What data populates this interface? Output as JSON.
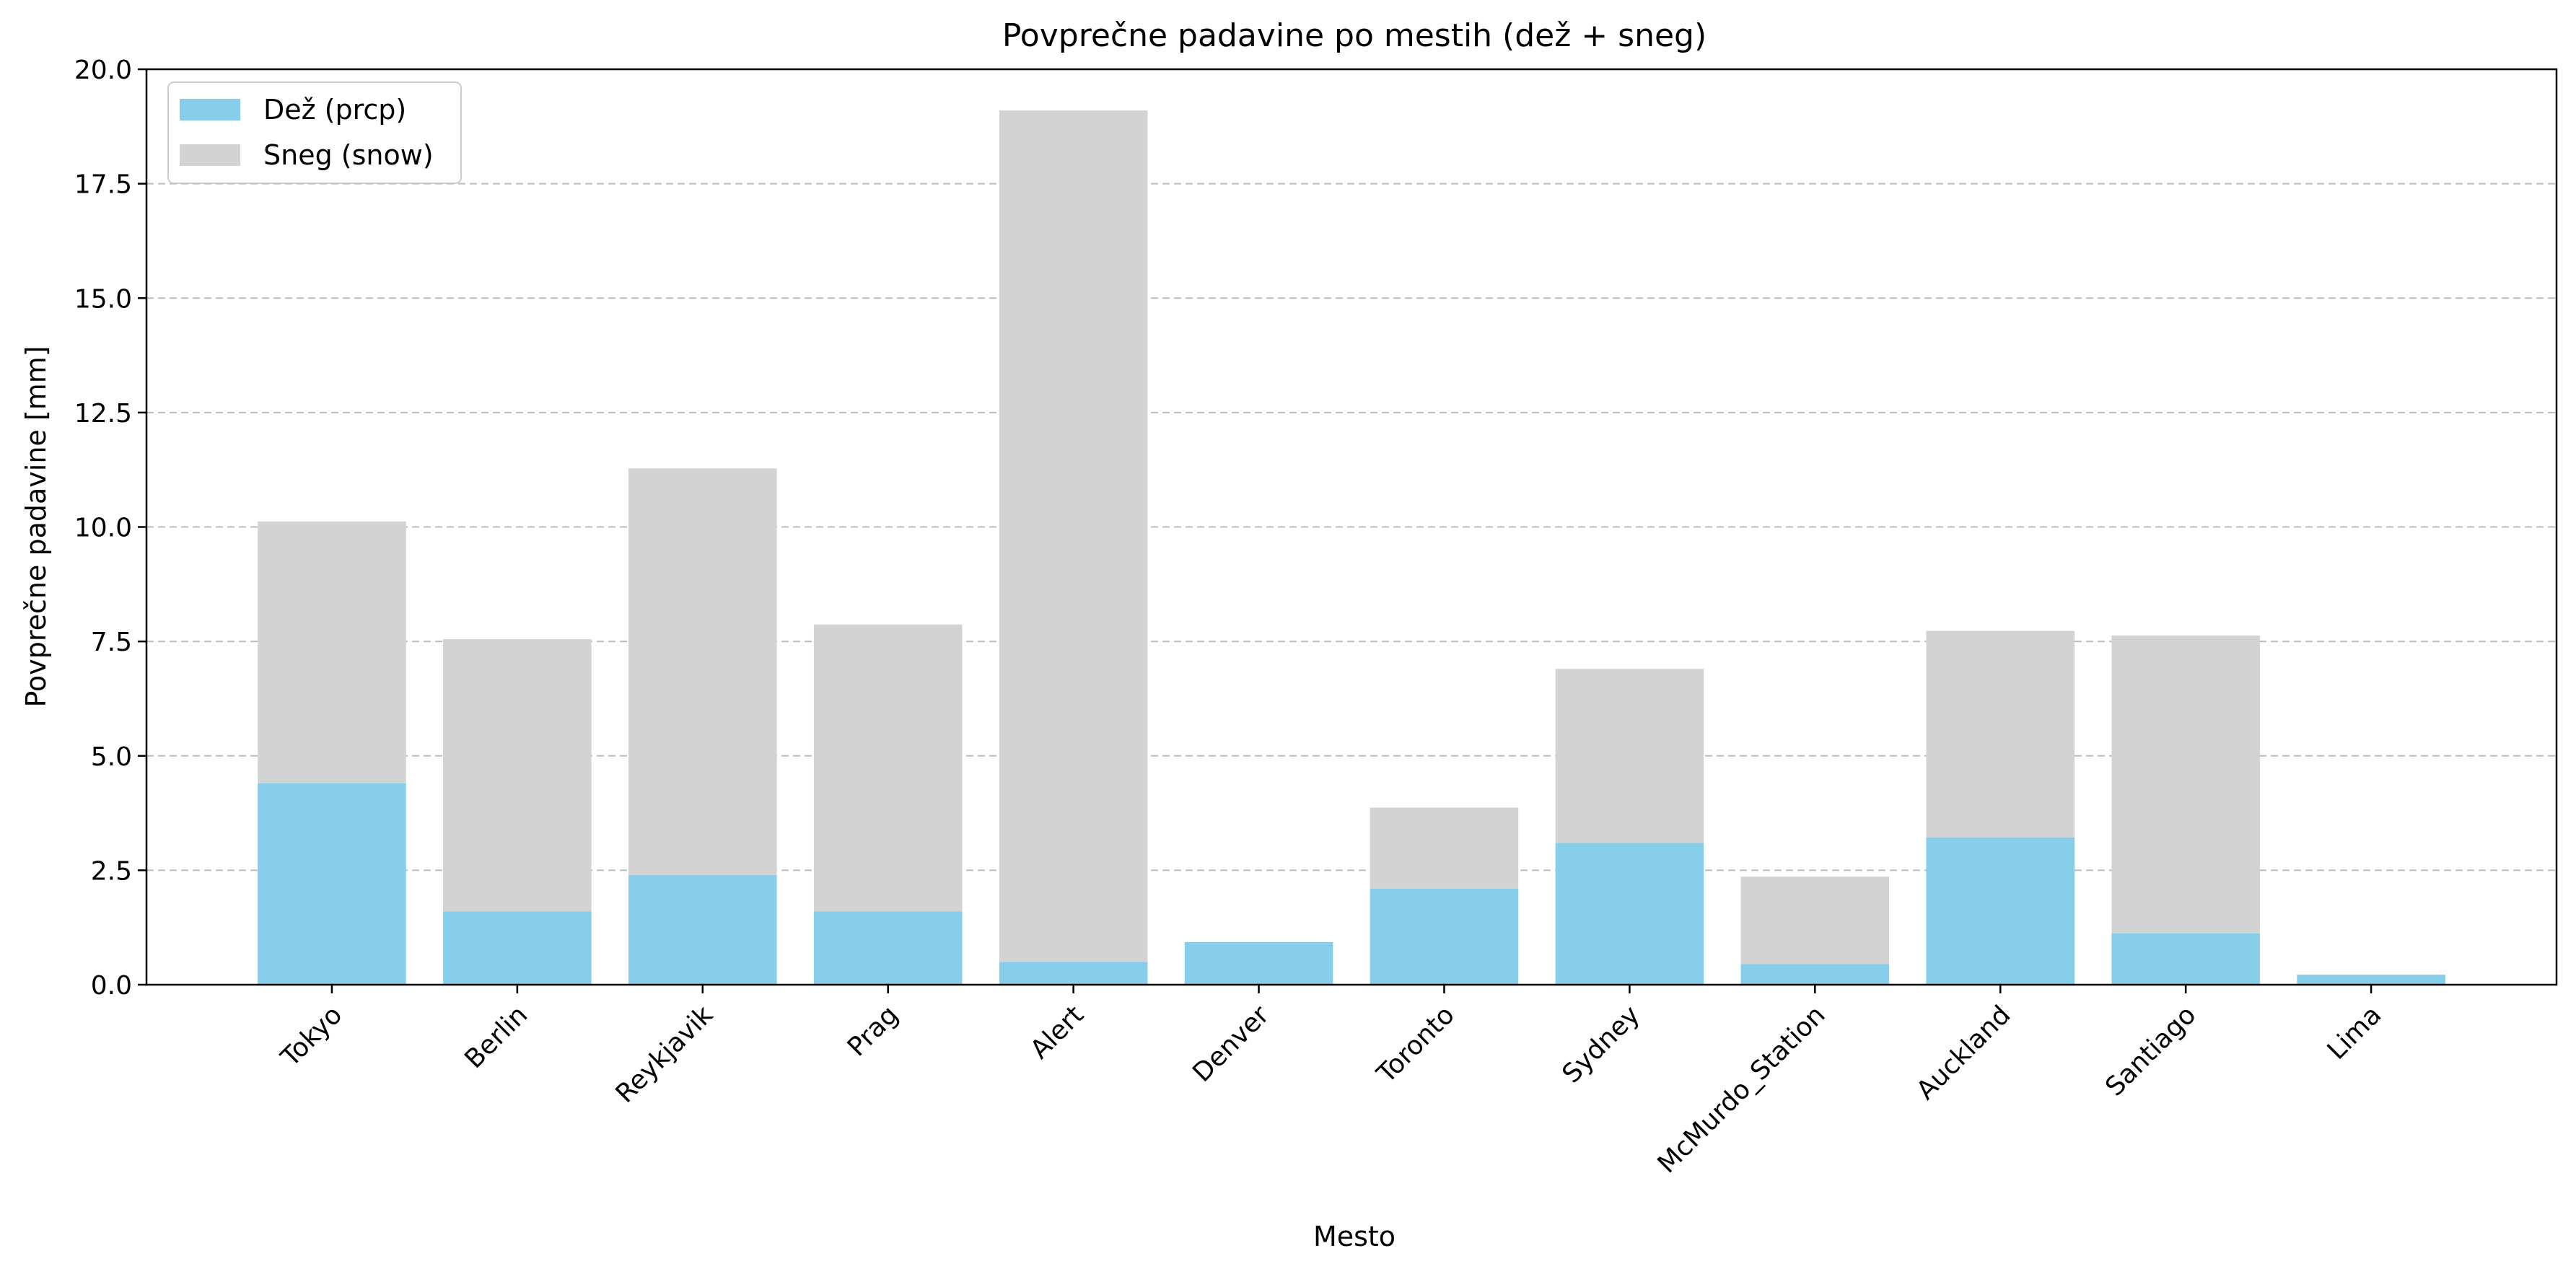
{
  "chart_data": {
    "type": "bar",
    "stacked": true,
    "title": "Povprečne padavine po mestih (dež + sneg)",
    "xlabel": "Mesto",
    "ylabel": "Povprečne padavine [mm]",
    "ylim": [
      0,
      20
    ],
    "yticks": [
      "0.0",
      "2.5",
      "5.0",
      "7.5",
      "10.0",
      "12.5",
      "15.0",
      "17.5",
      "20.0"
    ],
    "grid": "y-dashed",
    "legend_position": "top-left",
    "categories": [
      "Tokyo",
      "Berlin",
      "Reykjavik",
      "Prag",
      "Alert",
      "Denver",
      "Toronto",
      "Sydney",
      "McMurdo_Station",
      "Auckland",
      "Santiago",
      "Lima"
    ],
    "series": [
      {
        "name": "Dež (prcp)",
        "color": "#87ceeb",
        "values": [
          4.4,
          1.6,
          2.4,
          1.6,
          0.5,
          0.93,
          2.1,
          3.1,
          0.45,
          3.22,
          1.12,
          0.22
        ]
      },
      {
        "name": "Sneg (snow)",
        "color": "#d3d3d3",
        "values": [
          5.72,
          5.95,
          8.88,
          6.27,
          18.6,
          0.0,
          1.77,
          3.8,
          1.91,
          4.51,
          6.51,
          0.0
        ]
      }
    ]
  }
}
